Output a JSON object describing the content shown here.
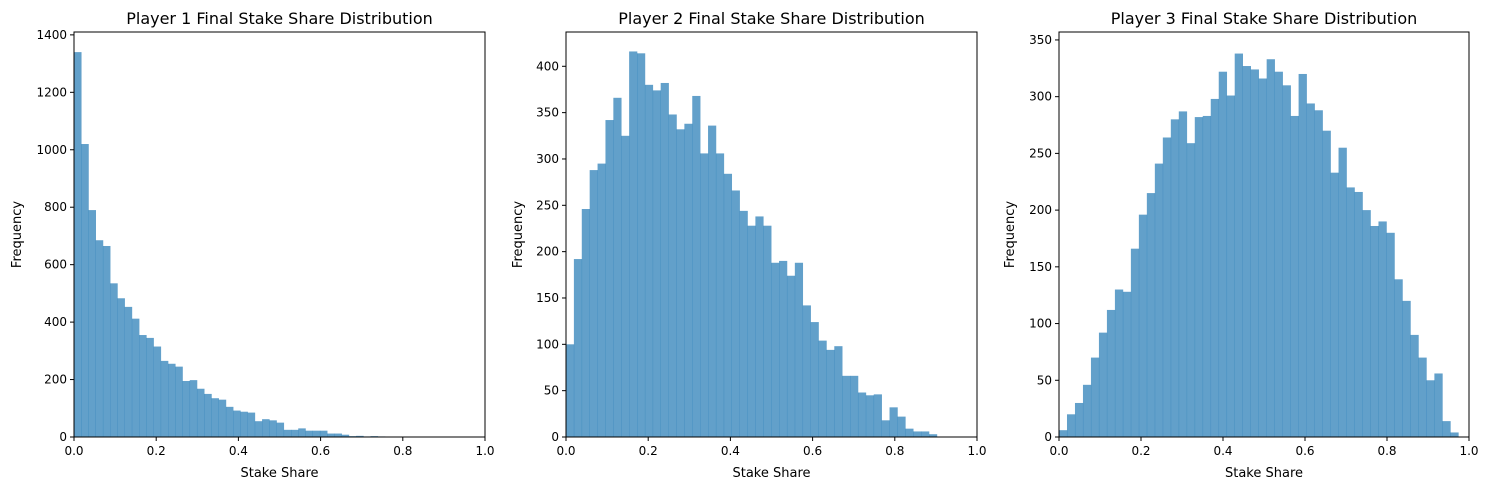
{
  "bar_color": "#1f77b4",
  "bar_alpha": 0.7,
  "chart_data": [
    {
      "type": "bar",
      "subtype": "histogram",
      "title": "Player 1 Final Stake Share Distribution",
      "xlabel": "Stake Share",
      "ylabel": "Frequency",
      "xlim": [
        0,
        1
      ],
      "ylim": [
        0,
        1410
      ],
      "xticks": [
        0.0,
        0.2,
        0.4,
        0.6,
        0.8,
        1.0
      ],
      "xtick_labels": [
        "0.0",
        "0.2",
        "0.4",
        "0.6",
        "0.8",
        "1.0"
      ],
      "yticks": [
        0,
        200,
        400,
        600,
        800,
        1000,
        1200,
        1400
      ],
      "ytick_labels": [
        "0",
        "200",
        "400",
        "600",
        "800",
        "1000",
        "1200",
        "1400"
      ],
      "bin_start": 0.0,
      "bin_width": 0.0176,
      "values": [
        1340,
        1020,
        790,
        685,
        665,
        535,
        483,
        453,
        412,
        355,
        345,
        315,
        265,
        255,
        245,
        195,
        198,
        168,
        150,
        135,
        130,
        105,
        92,
        88,
        85,
        55,
        62,
        58,
        50,
        25,
        25,
        30,
        22,
        22,
        22,
        12,
        12,
        8,
        3,
        4,
        2,
        3,
        2,
        1,
        0,
        0,
        0,
        0,
        0,
        0
      ]
    },
    {
      "type": "bar",
      "subtype": "histogram",
      "title": "Player 2 Final Stake Share Distribution",
      "xlabel": "Stake Share",
      "ylabel": "Frequency",
      "xlim": [
        0,
        1
      ],
      "ylim": [
        0,
        437
      ],
      "xticks": [
        0.0,
        0.2,
        0.4,
        0.6,
        0.8,
        1.0
      ],
      "xtick_labels": [
        "0.0",
        "0.2",
        "0.4",
        "0.6",
        "0.8",
        "1.0"
      ],
      "yticks": [
        0,
        50,
        100,
        150,
        200,
        250,
        300,
        350,
        400
      ],
      "ytick_labels": [
        "0",
        "50",
        "100",
        "150",
        "200",
        "250",
        "300",
        "350",
        "400"
      ],
      "bin_start": 0.0,
      "bin_width": 0.0192,
      "values": [
        100,
        192,
        246,
        288,
        295,
        342,
        366,
        325,
        416,
        414,
        380,
        374,
        382,
        348,
        332,
        338,
        368,
        306,
        336,
        306,
        284,
        266,
        244,
        228,
        238,
        228,
        188,
        190,
        174,
        188,
        142,
        124,
        104,
        94,
        98,
        66,
        66,
        48,
        45,
        46,
        18,
        32,
        22,
        9,
        6,
        6,
        3,
        0,
        0,
        0
      ]
    },
    {
      "type": "bar",
      "subtype": "histogram",
      "title": "Player 3 Final Stake Share Distribution",
      "xlabel": "Stake Share",
      "ylabel": "Frequency",
      "xlim": [
        0,
        1
      ],
      "ylim": [
        0,
        357
      ],
      "xticks": [
        0.0,
        0.2,
        0.4,
        0.6,
        0.8,
        1.0
      ],
      "xtick_labels": [
        "0.0",
        "0.2",
        "0.4",
        "0.6",
        "0.8",
        "1.0"
      ],
      "yticks": [
        0,
        50,
        100,
        150,
        200,
        250,
        300,
        350
      ],
      "ytick_labels": [
        "0",
        "50",
        "100",
        "150",
        "200",
        "250",
        "300",
        "350"
      ],
      "bin_start": 0.0,
      "bin_width": 0.01948,
      "values": [
        6,
        20,
        30,
        46,
        70,
        92,
        112,
        130,
        128,
        166,
        196,
        215,
        241,
        264,
        280,
        287,
        259,
        282,
        283,
        298,
        322,
        301,
        338,
        327,
        324,
        316,
        333,
        322,
        310,
        283,
        320,
        294,
        288,
        270,
        233,
        255,
        220,
        216,
        200,
        186,
        190,
        180,
        139,
        120,
        90,
        70,
        50,
        56,
        14,
        4
      ]
    }
  ]
}
